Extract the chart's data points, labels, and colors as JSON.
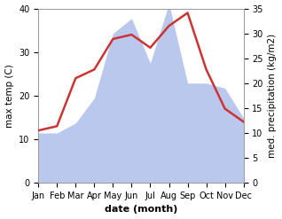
{
  "months": [
    "Jan",
    "Feb",
    "Mar",
    "Apr",
    "May",
    "Jun",
    "Jul",
    "Aug",
    "Sep",
    "Oct",
    "Nov",
    "Dec"
  ],
  "temperature": [
    12,
    13,
    24,
    26,
    33,
    34,
    31,
    36,
    39,
    26,
    17,
    14
  ],
  "precipitation": [
    10,
    10,
    12,
    17,
    30,
    33,
    24,
    36,
    20,
    20,
    19,
    13
  ],
  "temp_color": "#cc3333",
  "precip_color": "#bbc8ee",
  "temp_ylim": [
    0,
    40
  ],
  "precip_ylim": [
    0,
    35
  ],
  "temp_yticks": [
    0,
    10,
    20,
    30,
    40
  ],
  "precip_yticks": [
    0,
    5,
    10,
    15,
    20,
    25,
    30,
    35
  ],
  "xlabel": "date (month)",
  "ylabel_left": "max temp (C)",
  "ylabel_right": "med. precipitation (kg/m2)",
  "xlabel_fontsize": 8,
  "ylabel_fontsize": 7.5,
  "tick_fontsize": 7,
  "background_color": "#ffffff",
  "temp_linewidth": 1.8
}
